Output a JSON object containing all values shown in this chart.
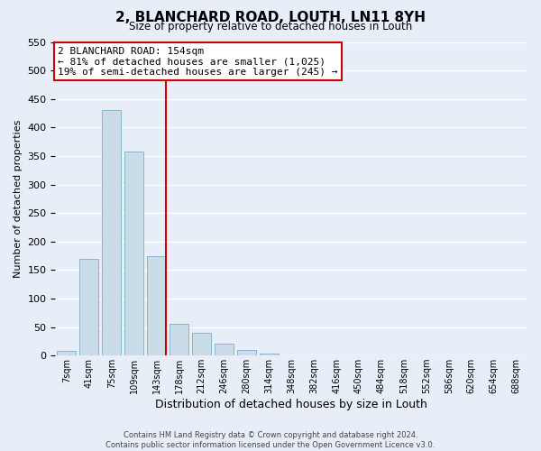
{
  "title": "2, BLANCHARD ROAD, LOUTH, LN11 8YH",
  "subtitle": "Size of property relative to detached houses in Louth",
  "xlabel": "Distribution of detached houses by size in Louth",
  "ylabel": "Number of detached properties",
  "bar_labels": [
    "7sqm",
    "41sqm",
    "75sqm",
    "109sqm",
    "143sqm",
    "178sqm",
    "212sqm",
    "246sqm",
    "280sqm",
    "314sqm",
    "348sqm",
    "382sqm",
    "416sqm",
    "450sqm",
    "484sqm",
    "518sqm",
    "552sqm",
    "586sqm",
    "620sqm",
    "654sqm",
    "688sqm"
  ],
  "bar_heights": [
    8,
    170,
    430,
    357,
    175,
    55,
    40,
    21,
    9,
    3,
    1,
    0,
    0,
    0,
    0,
    0,
    1,
    0,
    0,
    0,
    1
  ],
  "bar_color": "#c9dce8",
  "bar_edge_color": "#7aaec8",
  "vline_color": "#cc0000",
  "annotation_title": "2 BLANCHARD ROAD: 154sqm",
  "annotation_line1": "← 81% of detached houses are smaller (1,025)",
  "annotation_line2": "19% of semi-detached houses are larger (245) →",
  "annotation_box_color": "#ffffff",
  "annotation_box_edge": "#cc0000",
  "ylim": [
    0,
    550
  ],
  "footer1": "Contains HM Land Registry data © Crown copyright and database right 2024.",
  "footer2": "Contains public sector information licensed under the Open Government Licence v3.0.",
  "background_color": "#e8eef8",
  "grid_color": "#ffffff"
}
